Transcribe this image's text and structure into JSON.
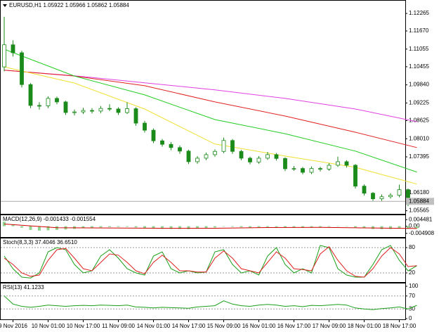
{
  "chart_data": [
    {
      "type": "candlestick",
      "title": "EURUSD,H1 1.05922 1.05966 1.05862 1.05884",
      "categories": [
        null,
        "9 Nov 2016",
        null,
        null,
        null,
        "10 Nov 01:00",
        null,
        null,
        null,
        "10 Nov 17:00",
        null,
        null,
        null,
        "11 Nov 09:00",
        null,
        null,
        null,
        "14 Nov 01:00",
        null,
        null,
        null,
        "14 Nov 17:00",
        null,
        null,
        null,
        "15 Nov 09:00",
        null,
        null,
        null,
        "16 Nov 01:00",
        null,
        null,
        null,
        "16 Nov 17:00",
        null,
        null,
        null,
        "17 Nov 09:00",
        null,
        null,
        null,
        "18 Nov 01:00",
        null,
        null,
        null,
        "18 Nov 17:00",
        null,
        null
      ],
      "open": [
        1.1045,
        1.112,
        1.1093,
        1.0985,
        1.0914,
        1.0913,
        1.0938,
        1.0926,
        1.089,
        1.0892,
        1.0897,
        1.0895,
        1.0904,
        1.0902,
        1.089,
        1.0903,
        1.0854,
        1.083,
        1.0794,
        1.0782,
        1.0771,
        1.0759,
        1.0723,
        1.0735,
        1.0747,
        1.0758,
        1.0795,
        1.0758,
        1.0735,
        1.0722,
        1.0735,
        1.0747,
        1.0734,
        1.0699,
        1.07,
        1.0687,
        1.07,
        1.0698,
        1.0711,
        1.0723,
        1.0711,
        1.064,
        1.0616,
        1.0597,
        1.0604,
        1.0609,
        1.0628,
        1.05922
      ],
      "high": [
        1.1215,
        1.1135,
        1.11,
        1.099,
        1.0925,
        1.0945,
        1.0944,
        1.093,
        1.09,
        1.0906,
        1.0905,
        1.0912,
        1.0918,
        1.0908,
        1.0925,
        1.0908,
        1.0862,
        1.0836,
        1.08,
        1.079,
        1.0778,
        1.0764,
        1.0742,
        1.0754,
        1.0765,
        1.0805,
        1.08,
        1.0763,
        1.074,
        1.0742,
        1.0756,
        1.0752,
        1.0738,
        1.0708,
        1.0705,
        1.0707,
        1.0706,
        1.0718,
        1.074,
        1.0728,
        1.0715,
        1.0646,
        1.062,
        1.0612,
        1.0616,
        1.0645,
        1.0632,
        1.05966
      ],
      "low": [
        1.103,
        1.108,
        1.0975,
        1.0905,
        1.09,
        1.0905,
        1.0918,
        1.0882,
        1.088,
        1.0885,
        1.0887,
        1.0888,
        1.0895,
        1.0882,
        1.0885,
        1.0845,
        1.0822,
        1.0786,
        1.0774,
        1.0762,
        1.075,
        1.0715,
        1.0716,
        1.0728,
        1.074,
        1.0752,
        1.075,
        1.0728,
        1.0714,
        1.0716,
        1.0729,
        1.0727,
        1.0691,
        1.0692,
        1.068,
        1.0681,
        1.069,
        1.0692,
        1.0705,
        1.0703,
        1.0632,
        1.0608,
        1.059,
        1.059,
        1.0598,
        1.0602,
        1.0572,
        1.05862
      ],
      "close": [
        1.112,
        1.1093,
        1.0985,
        1.0914,
        1.0913,
        1.0938,
        1.0926,
        1.089,
        1.0892,
        1.0897,
        1.0895,
        1.0904,
        1.0902,
        1.089,
        1.0903,
        1.0854,
        1.083,
        1.0794,
        1.0782,
        1.0771,
        1.0759,
        1.0723,
        1.0735,
        1.0747,
        1.0758,
        1.0795,
        1.0758,
        1.0735,
        1.0722,
        1.0735,
        1.0747,
        1.0734,
        1.0699,
        1.07,
        1.0687,
        1.07,
        1.0698,
        1.0711,
        1.0723,
        1.0711,
        1.064,
        1.0616,
        1.0597,
        1.0604,
        1.0609,
        1.0628,
        1.0585,
        1.05884
      ],
      "color": "#1a8a1a",
      "moving_averages": [
        {
          "color": "#e040e0",
          "x": [
            0,
            8,
            16,
            24,
            32,
            40,
            47
          ],
          "values": [
            1.1034,
            1.1015,
            1.0991,
            1.0967,
            1.0938,
            1.0902,
            1.0859
          ]
        },
        {
          "color": "#e02020",
          "x": [
            0,
            8,
            16,
            24,
            32,
            40,
            47
          ],
          "values": [
            1.1034,
            1.1014,
            1.0981,
            1.0926,
            1.0878,
            1.0823,
            1.0771
          ]
        },
        {
          "color": "#22cc22",
          "x": [
            0,
            8,
            16,
            24,
            32,
            40,
            47
          ],
          "values": [
            1.1105,
            1.1014,
            1.095,
            1.0866,
            1.0818,
            1.0759,
            1.0688
          ]
        },
        {
          "color": "#f0e030",
          "x": [
            0,
            8,
            16,
            24,
            32,
            40,
            47
          ],
          "values": [
            1.1045,
            1.099,
            1.0902,
            1.0783,
            1.0742,
            1.0704,
            1.0647
          ]
        }
      ],
      "last_price": 1.05884,
      "ylim": [
        1.0546,
        1.1265
      ],
      "yticks": [
        1.12265,
        {
          "value": 1.1167,
          "label": "1.11670"
        },
        1.11055,
        1.10455,
        {
          "value": 1.0984,
          "label": "1.09840"
        },
        1.09225,
        1.08625,
        {
          "value": 1.0801,
          "label": "1.08010"
        },
        1.07395,
        {
          "value": 1.0618,
          "label": "1.06180"
        },
        1.05565
      ]
    },
    {
      "type": "macd",
      "title": "MACD(12,26,9) -0.001433 -0.001554",
      "values": [
        0.003,
        0.001,
        -0.001,
        -0.0025,
        -0.003,
        -0.0028,
        -0.0025,
        -0.0022,
        -0.0018,
        -0.0014,
        -0.001,
        -0.0008,
        -0.0006,
        -0.0005,
        -0.0004,
        -0.0008,
        -0.0012,
        -0.0016,
        -0.0018,
        -0.0019,
        -0.0019,
        -0.002,
        -0.0017,
        -0.0013,
        -0.0009,
        -0.0003,
        -0.0004,
        -0.0007,
        -0.0009,
        -0.0008,
        -0.0006,
        -0.0006,
        -0.0009,
        -0.001,
        -0.0011,
        -0.0009,
        -0.0007,
        -0.0004,
        -0.0001,
        0,
        -0.0008,
        -0.0014,
        -0.0019,
        -0.002,
        -0.0019,
        -0.0015,
        -0.0015,
        -0.0014
      ],
      "color": "#8fd48f",
      "signal": {
        "color": "#d00000",
        "x": [
          0,
          6,
          12,
          18,
          24,
          30,
          36,
          42,
          47
        ],
        "values": [
          0.0015,
          -0.001,
          -0.0012,
          -0.0014,
          -0.0014,
          -0.0009,
          -0.0008,
          -0.0012,
          -0.0016
        ]
      },
      "ylim": [
        -0.0074,
        0.007
      ],
      "yticks": [
        0.004481,
        {
          "value": 0,
          "label": "0.00"
        },
        -0.004908
      ]
    },
    {
      "type": "line",
      "title": "Stoch(8,3,3) 37.4046 36.6510",
      "series": [
        {
          "color": "#1aa01a",
          "values": [
            60,
            30,
            10,
            8,
            20,
            70,
            80,
            75,
            40,
            20,
            25,
            60,
            75,
            55,
            30,
            20,
            15,
            60,
            70,
            30,
            20,
            25,
            20,
            22,
            70,
            75,
            40,
            20,
            25,
            15,
            60,
            80,
            40,
            20,
            30,
            20,
            85,
            80,
            30,
            15,
            10,
            10,
            40,
            75,
            85,
            50,
            25,
            37
          ]
        },
        {
          "color": "#e02020",
          "values": [
            55,
            40,
            20,
            12,
            15,
            50,
            75,
            78,
            55,
            30,
            25,
            45,
            65,
            62,
            45,
            25,
            18,
            45,
            62,
            45,
            25,
            25,
            22,
            22,
            55,
            72,
            55,
            30,
            25,
            20,
            45,
            70,
            55,
            30,
            28,
            25,
            65,
            82,
            50,
            25,
            12,
            10,
            30,
            60,
            80,
            65,
            35,
            37
          ]
        }
      ],
      "ylim": [
        0,
        100
      ],
      "yticks": [
        20,
        80
      ],
      "grid": true
    },
    {
      "type": "line",
      "title": "RSI(13) 41.1233",
      "series": [
        {
          "color": "#1aa01a",
          "values": [
            70,
            45,
            38,
            35,
            38,
            42,
            40,
            38,
            40,
            41,
            40,
            42,
            41,
            40,
            42,
            36,
            35,
            33,
            35,
            34,
            33,
            32,
            36,
            38,
            40,
            55,
            45,
            40,
            38,
            42,
            44,
            42,
            38,
            40,
            37,
            41,
            40,
            42,
            44,
            42,
            33,
            30,
            28,
            31,
            33,
            36,
            30,
            41
          ]
        }
      ],
      "ylim": [
        0,
        100
      ],
      "yticks": [
        0,
        30,
        70,
        100
      ],
      "grid": true
    }
  ]
}
